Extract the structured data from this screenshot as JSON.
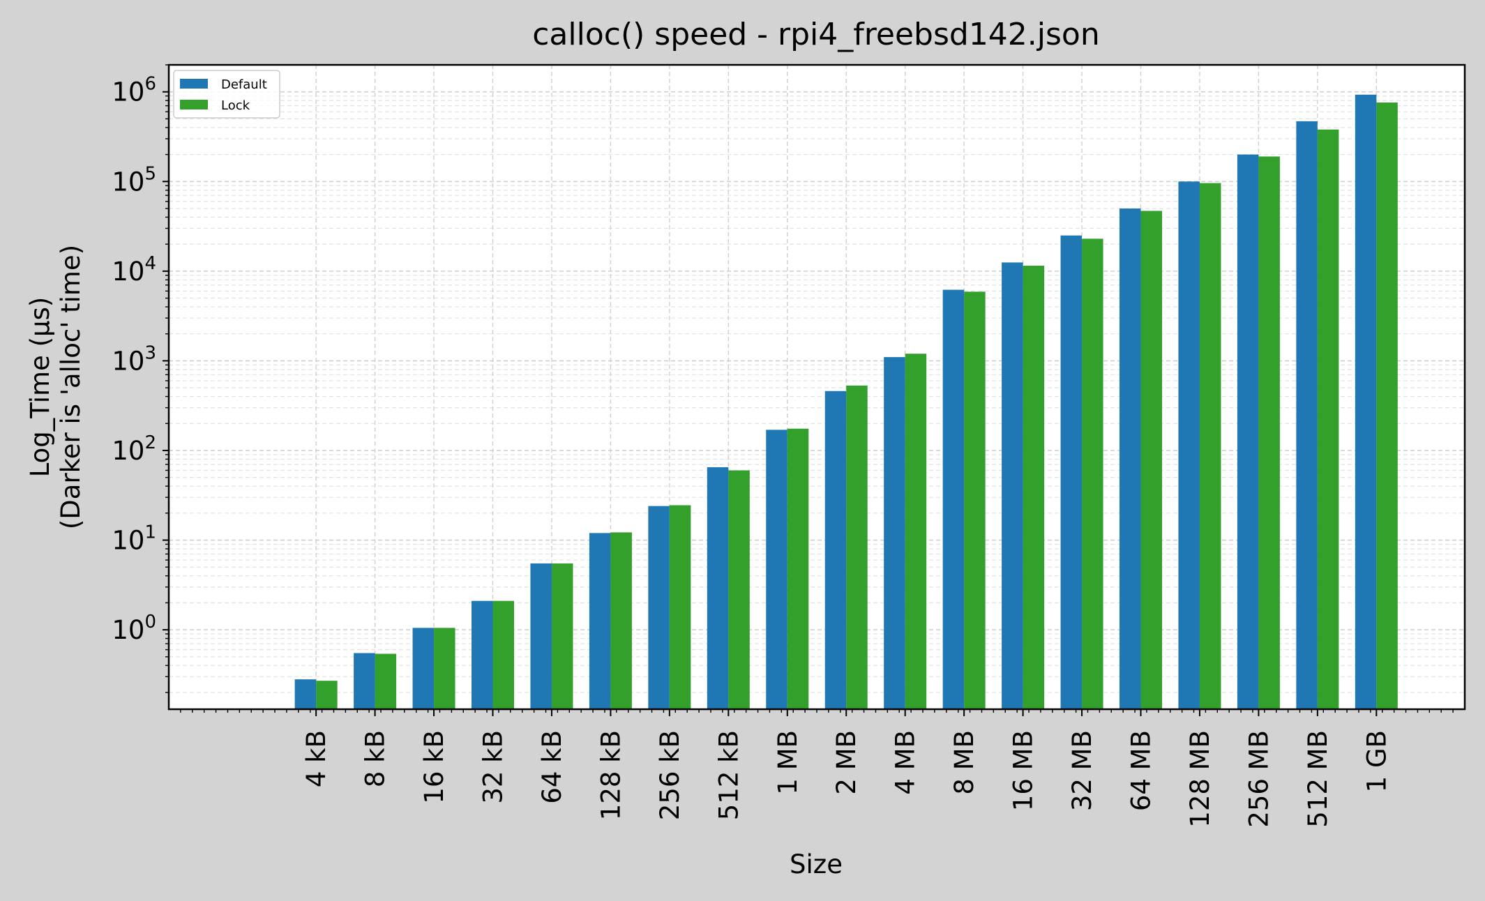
{
  "chart_data": {
    "type": "bar",
    "title": "calloc() speed - rpi4_freebsd142.json",
    "xlabel": "Size",
    "ylabel_line1": "Log_Time (µs)",
    "ylabel_line2": "(Darker is 'alloc' time)",
    "yscale": "log",
    "ylim": [
      0.13,
      2000000
    ],
    "y_tick_values": [
      1,
      10,
      100,
      1000,
      10000,
      100000,
      1000000
    ],
    "y_tick_exponents": [
      "0",
      "1",
      "2",
      "3",
      "4",
      "5",
      "6"
    ],
    "y_tick_base": "10",
    "grid": true,
    "legend_position": "top-left",
    "categories": [
      "4 kB",
      "8 kB",
      "16 kB",
      "32 kB",
      "64 kB",
      "128 kB",
      "256 kB",
      "512 kB",
      "1 MB",
      "2 MB",
      "4 MB",
      "8 MB",
      "16 MB",
      "32 MB",
      "64 MB",
      "128 MB",
      "256 MB",
      "512 MB",
      "1 GB"
    ],
    "series": [
      {
        "name": "Default",
        "color": "#1f77b4",
        "values": [
          0.28,
          0.55,
          1.05,
          2.1,
          5.5,
          12,
          24,
          65,
          170,
          460,
          1100,
          6200,
          12500,
          25000,
          50000,
          100000,
          200000,
          470000,
          930000
        ]
      },
      {
        "name": "Lock",
        "color": "#33a02c",
        "values": [
          0.27,
          0.54,
          1.05,
          2.1,
          5.5,
          12.2,
          24.5,
          60,
          175,
          530,
          1200,
          5900,
          11500,
          23000,
          47000,
          96000,
          190000,
          380000,
          760000
        ]
      }
    ]
  }
}
